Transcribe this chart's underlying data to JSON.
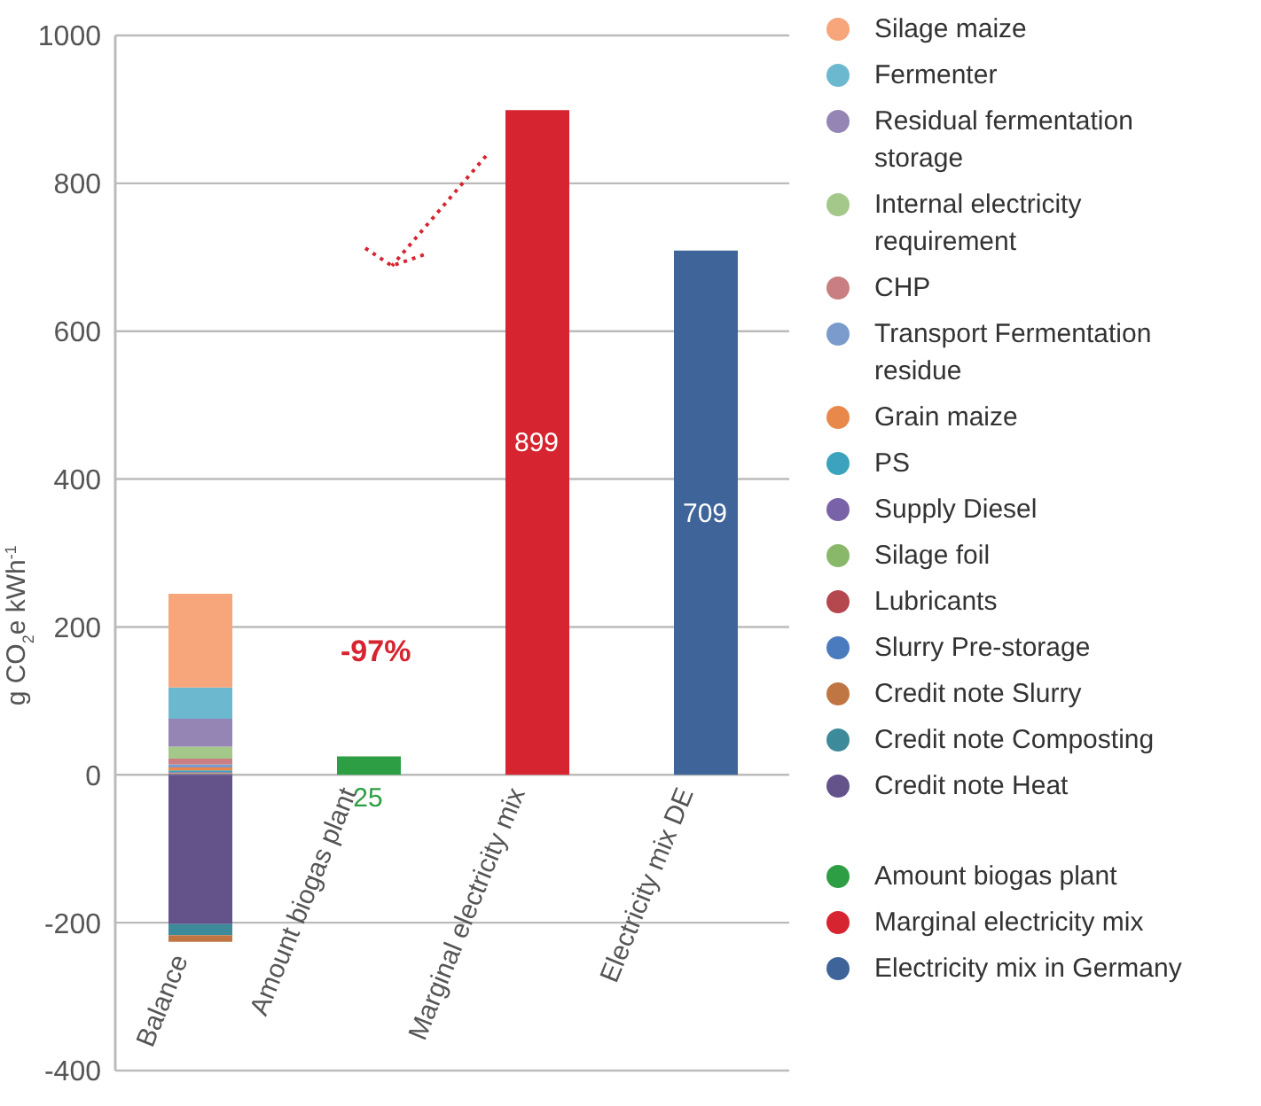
{
  "chart_data": {
    "type": "bar",
    "stacked": true,
    "ylabel": "g CO$_{2}$e kWh$^{-1}$",
    "categories": [
      "Balance",
      "Amount biogas plant",
      "Marginal electricity mix",
      "Electricity mix DE"
    ],
    "ylim": [
      -400,
      1000
    ],
    "yticks": [
      -400,
      -200,
      0,
      200,
      400,
      600,
      800,
      1000
    ],
    "grid": "y",
    "legend": "right",
    "annotations": [
      "-97%"
    ],
    "series": [
      {
        "name": "Credit note Heat",
        "color": "#63538a",
        "values": [
          -202,
          null,
          null,
          null
        ]
      },
      {
        "name": "Credit note Composting",
        "color": "#3d8a9a",
        "values": [
          -15,
          null,
          null,
          null
        ]
      },
      {
        "name": "Credit note Slurry",
        "color": "#c07642",
        "values": [
          -9,
          null,
          null,
          null
        ]
      },
      {
        "name": "Slurry Pre-storage",
        "color": "#4a7bbf",
        "values": [
          1,
          null,
          null,
          null
        ]
      },
      {
        "name": "Lubricants",
        "color": "#b5474f",
        "values": [
          1,
          null,
          null,
          null
        ]
      },
      {
        "name": "Silage foil",
        "color": "#8ab86a",
        "values": [
          1,
          null,
          null,
          null
        ]
      },
      {
        "name": "Supply Diesel",
        "color": "#7a62a8",
        "values": [
          1,
          null,
          null,
          null
        ]
      },
      {
        "name": "PS",
        "color": "#3ba3bd",
        "values": [
          2,
          null,
          null,
          null
        ]
      },
      {
        "name": "Grain maize",
        "color": "#e8884a",
        "values": [
          4,
          null,
          null,
          null
        ]
      },
      {
        "name": "Transport Fermentation residue",
        "color": "#7a9bcc",
        "values": [
          4,
          null,
          null,
          null
        ]
      },
      {
        "name": "CHP",
        "color": "#c97f82",
        "values": [
          8,
          null,
          null,
          null
        ]
      },
      {
        "name": "Internal electricity requirement",
        "color": "#a3c88a",
        "values": [
          16,
          null,
          null,
          null
        ]
      },
      {
        "name": "Residual fermentation storage",
        "color": "#9485b5",
        "values": [
          38,
          null,
          null,
          null
        ]
      },
      {
        "name": "Fermenter",
        "color": "#6cb8cf",
        "values": [
          42,
          null,
          null,
          null
        ]
      },
      {
        "name": "Silage maize",
        "color": "#f7a57a",
        "values": [
          127,
          null,
          null,
          null
        ]
      },
      {
        "name": "Amount biogas plant",
        "color": "#2e9e44",
        "values": [
          null,
          25,
          null,
          null
        ],
        "value_labels": [
          null,
          "25",
          null,
          null
        ]
      },
      {
        "name": "Marginal electricity mix",
        "color": "#d62530",
        "values": [
          null,
          null,
          899,
          null
        ],
        "value_labels": [
          null,
          null,
          "899",
          null
        ]
      },
      {
        "name": "Electricity mix in Germany",
        "color": "#3f6499",
        "values": [
          null,
          null,
          null,
          709
        ],
        "value_labels": [
          null,
          null,
          null,
          "709"
        ]
      }
    ]
  }
}
